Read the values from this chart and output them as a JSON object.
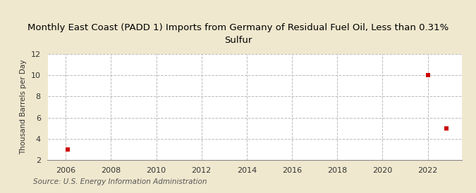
{
  "title": "Monthly East Coast (PADD 1) Imports from Germany of Residual Fuel Oil, Less than 0.31%\nSulfur",
  "ylabel": "Thousand Barrels per Day",
  "source": "Source: U.S. Energy Information Administration",
  "background_color": "#f0e8ce",
  "plot_bg_color": "#ffffff",
  "data_x": [
    2006.08,
    2022.0,
    2022.83
  ],
  "data_y": [
    3.0,
    10.0,
    5.0
  ],
  "marker_color": "#cc0000",
  "marker_size": 5,
  "xlim": [
    2005.2,
    2023.5
  ],
  "ylim": [
    2,
    12
  ],
  "xticks": [
    2006,
    2008,
    2010,
    2012,
    2014,
    2016,
    2018,
    2020,
    2022
  ],
  "yticks": [
    2,
    4,
    6,
    8,
    10,
    12
  ],
  "grid_color": "#bbbbbb",
  "title_fontsize": 9.5,
  "axis_label_fontsize": 7.5,
  "tick_fontsize": 8,
  "source_fontsize": 7.5
}
